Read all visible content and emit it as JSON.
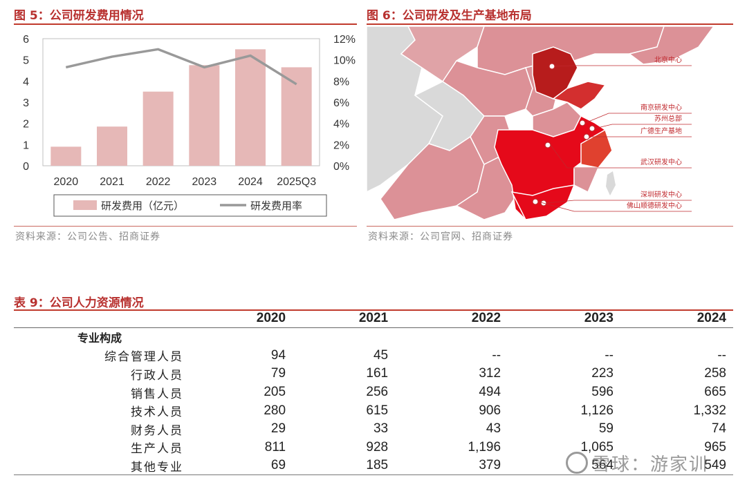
{
  "fig5": {
    "title": "图 5：公司研发费用情况",
    "source": "资料来源：公司公告、招商证券"
  },
  "fig6": {
    "title": "图 6：公司研发及生产基地布局",
    "source": "资料来源：公司官网、招商证券",
    "sites": [
      "北京中心",
      "南京研发中心",
      "苏州总部",
      "广德生产基地",
      "武汉研发中心",
      "深圳研发中心",
      "佛山顺德研发中心"
    ],
    "colors": {
      "dark": "#b71c1c",
      "core": "#e5091a",
      "mid": "#d9352b",
      "light": "#dc9197",
      "grey": "#d9d9d9"
    }
  },
  "table9": {
    "title": "表 9：公司人力资源情况",
    "years": [
      "2020",
      "2021",
      "2022",
      "2023",
      "2024"
    ],
    "group_label": "专业构成",
    "rows": [
      {
        "label": "综合管理人员",
        "values": [
          "94",
          "45",
          "--",
          "--",
          "--"
        ]
      },
      {
        "label": "行政人员",
        "values": [
          "79",
          "161",
          "312",
          "223",
          "258"
        ]
      },
      {
        "label": "销售人员",
        "values": [
          "205",
          "256",
          "494",
          "596",
          "665"
        ]
      },
      {
        "label": "技术人员",
        "values": [
          "280",
          "615",
          "906",
          "1,126",
          "1,332"
        ]
      },
      {
        "label": "财务人员",
        "values": [
          "29",
          "33",
          "43",
          "59",
          "74"
        ]
      },
      {
        "label": "生产人员",
        "values": [
          "811",
          "928",
          "1,196",
          "1,065",
          "965"
        ]
      },
      {
        "label": "其他专业",
        "values": [
          "69",
          "185",
          "379",
          "564",
          "549"
        ]
      }
    ]
  },
  "watermark": "雪球：游家训",
  "chart_data": {
    "type": "bar",
    "categories": [
      "2020",
      "2021",
      "2022",
      "2023",
      "2024",
      "2025Q3"
    ],
    "series": [
      {
        "name": "研发费用（亿元）",
        "type": "bar",
        "axis": "left",
        "color": "#e6b8b7",
        "values": [
          0.9,
          1.85,
          3.5,
          4.75,
          5.5,
          4.65
        ]
      },
      {
        "name": "研发费用率",
        "type": "line",
        "axis": "right",
        "color": "#999999",
        "values": [
          9.3,
          10.3,
          11.0,
          9.3,
          10.4,
          7.7
        ]
      }
    ],
    "left_ticks": [
      "6",
      "5",
      "4",
      "3",
      "2",
      "1",
      "0"
    ],
    "right_ticks": [
      "12%",
      "10%",
      "8%",
      "6%",
      "4%",
      "2%",
      "0%"
    ],
    "ylim_left": [
      0,
      6
    ],
    "ylim_right": [
      0,
      12
    ]
  }
}
